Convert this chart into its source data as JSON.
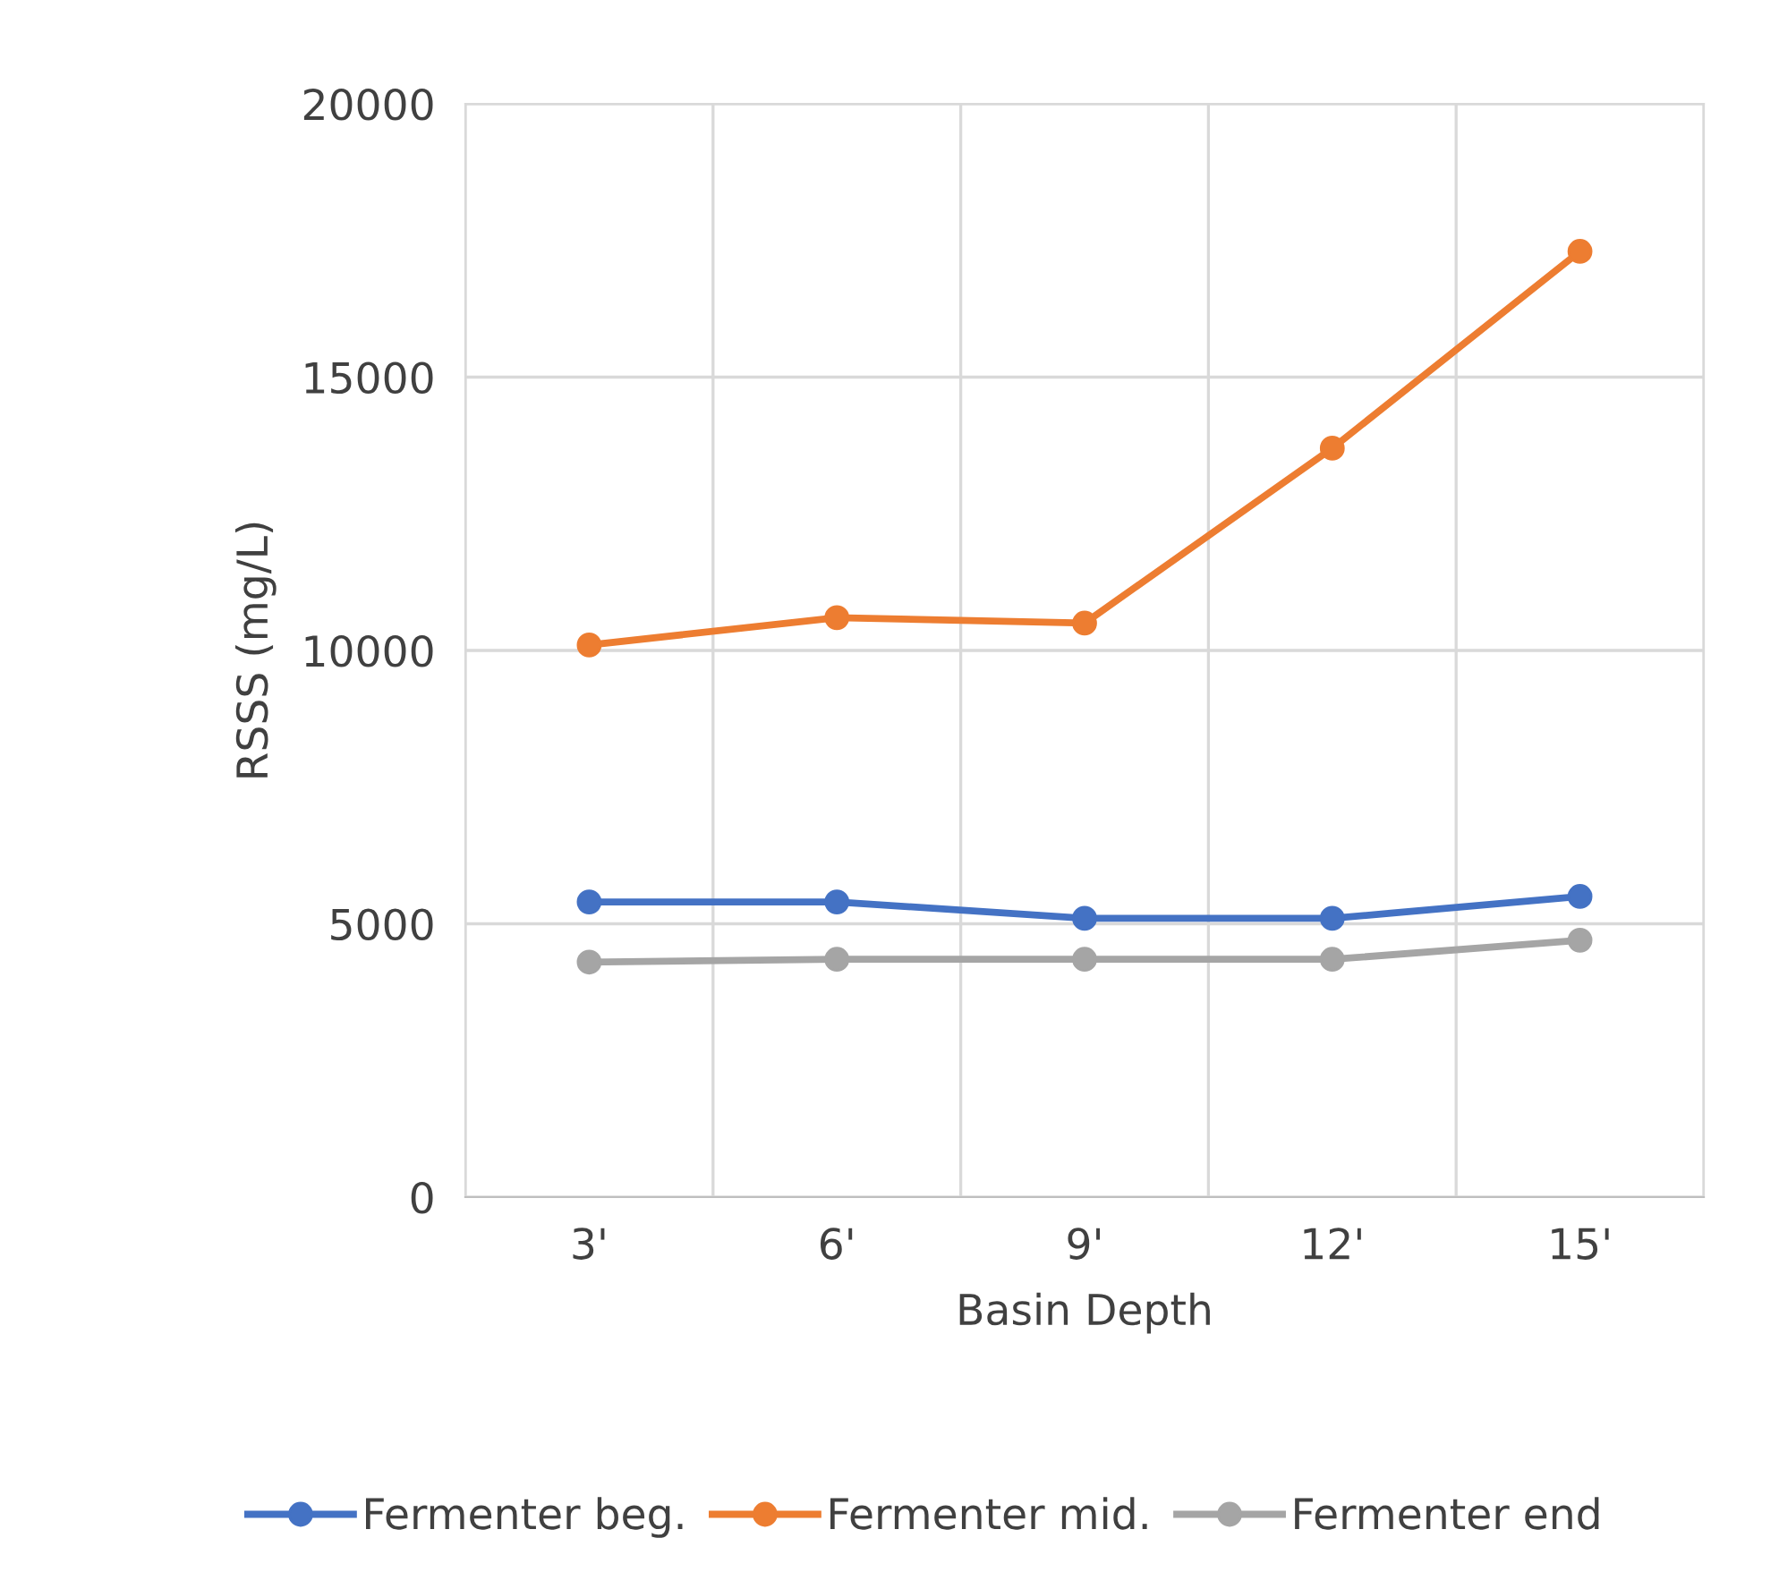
{
  "chart_data": {
    "type": "line",
    "xlabel": "Basin Depth",
    "ylabel": "RSSS (mg/L)",
    "categories": [
      "3'",
      "6'",
      "9'",
      "12'",
      "15'"
    ],
    "series": [
      {
        "name": "Fermenter beg.",
        "color": "#4472c4",
        "values": [
          5400,
          5400,
          5100,
          5100,
          5500
        ]
      },
      {
        "name": "Fermenter mid.",
        "color": "#ed7d31",
        "values": [
          10100,
          10600,
          10500,
          13700,
          17300
        ]
      },
      {
        "name": "Fermenter end",
        "color": "#a5a5a5",
        "values": [
          4300,
          4350,
          4350,
          4350,
          4700
        ]
      }
    ],
    "ylim": [
      0,
      20000
    ],
    "yticks": [
      0,
      5000,
      10000,
      15000,
      20000
    ],
    "grid": true,
    "legend": "bottom",
    "marker": "circle",
    "line_style": "solid"
  }
}
